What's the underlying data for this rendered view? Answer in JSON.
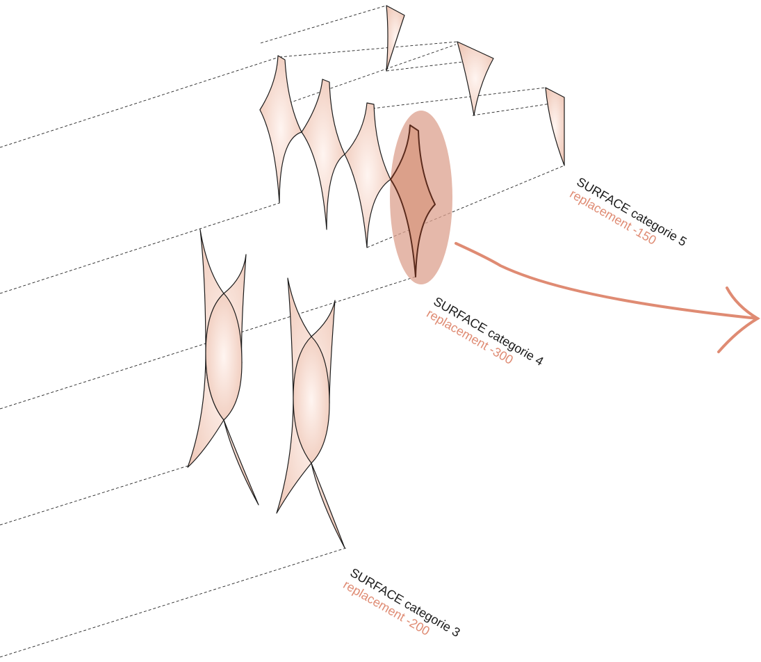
{
  "colors": {
    "accent": "#df8b73",
    "panel_fill": "#f6dcd2",
    "highlight": "#d89a86",
    "line": "#1a1a1a"
  },
  "labels": {
    "cat5": {
      "title": "SURFACE categorie 5",
      "sub": "replacement -150"
    },
    "cat4": {
      "title": "SURFACE categorie 4",
      "sub": "replacement -300"
    },
    "cat3": {
      "title": "SURFACE categorie 3",
      "sub": "replacement -200"
    }
  }
}
